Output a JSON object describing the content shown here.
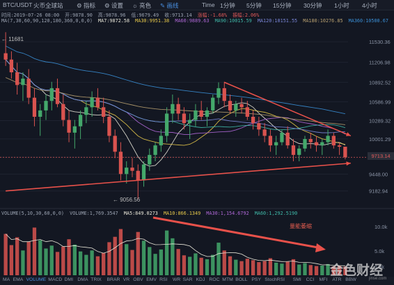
{
  "toolbar": {
    "pair": "BTC/USDT",
    "exchange": "火币全球站",
    "indicators": "指标",
    "settings": "设置",
    "theme": "亮色",
    "drawing": "画线",
    "timeframes": [
      "Time",
      "1分钟",
      "5分钟",
      "15分钟",
      "30分钟",
      "1小时",
      "4小时"
    ]
  },
  "info": {
    "line1": [
      "时间:2019-07-26 08:00",
      "开:9878.90",
      "高:9878.96",
      "低:9679.49",
      "收:9713.14",
      "涨幅:-1.68%",
      "振幅:2.06%"
    ],
    "line2": [
      "MA(7,30,60,90,120,180,360,0,0,0)",
      "MA7:9872.58",
      "MA30:9951.38",
      "MA60:9889.63",
      "MA90:10015.59",
      "MA120:10151.55",
      "MA180:10276.85",
      "MA360:10500.67"
    ],
    "volume": [
      "VOLUME(5,10,30,60,0,0)",
      "VOLUME:1,769.3547",
      "MA5:849.0273",
      "MA10:866.1349",
      "MA30:1,154.6792",
      "MA60:1,292.5190"
    ]
  },
  "annotations": {
    "high": "11681",
    "low": "9056.56",
    "volume_note": "量能萎缩",
    "current_price": "9713.14"
  },
  "watermark": {
    "text": "金色财经",
    "url": "jinse.com"
  },
  "indicator_bar": [
    "MA",
    "EMA",
    "VOLUME",
    "MACD",
    "DMI",
    "DMA",
    "TRIX",
    "BRAR",
    "VR",
    "OBV",
    "EMV",
    "RSI",
    "WR",
    "SAR",
    "KDJ",
    "ROC",
    "MTM",
    "BOLL",
    "PSY",
    "StochRSI",
    "SMI",
    "CCI",
    "MFI",
    "ATR",
    "BBW"
  ],
  "colors": {
    "up": "#44a86b",
    "down": "#d9534f",
    "trendline": "#e8514a",
    "ma7": "#e8e6d8",
    "ma30": "#e6c84a",
    "ma60": "#b068d8",
    "ma90": "#3fb8a8",
    "ma120": "#7a86d8",
    "ma180": "#b8a070",
    "ma360": "#3a8fd6"
  },
  "chart_data": {
    "type": "candlestick",
    "title": "BTC/USDT",
    "y_ticks": [
      11530.36,
      11206.98,
      10892.52,
      10586.99,
      10289.32,
      10001.29,
      9713.14,
      9448.0,
      9182.94
    ],
    "x_ticks": [
      "7月15",
      "7月17",
      "7月19",
      "7月21",
      "7月23",
      "7月25",
      "7月27"
    ],
    "volume_ticks": [
      "10.0k",
      "5.0k",
      "1.8k"
    ],
    "candles": [
      [
        11350,
        11681,
        11150,
        11250
      ],
      [
        11250,
        11380,
        10950,
        11050
      ],
      [
        11050,
        11200,
        10700,
        10850
      ],
      [
        10850,
        11050,
        10600,
        10950
      ],
      [
        10950,
        11100,
        10550,
        10650
      ],
      [
        10650,
        10800,
        10200,
        10350
      ],
      [
        10350,
        10550,
        10050,
        10450
      ],
      [
        10450,
        10700,
        10300,
        10600
      ],
      [
        10600,
        10900,
        10450,
        10800
      ],
      [
        10800,
        10950,
        10500,
        10550
      ],
      [
        10550,
        10700,
        10200,
        10300
      ],
      [
        10300,
        10450,
        9950,
        10100
      ],
      [
        10100,
        10300,
        9850,
        10200
      ],
      [
        10200,
        10450,
        10000,
        10380
      ],
      [
        10380,
        10600,
        10250,
        10500
      ],
      [
        10500,
        10750,
        10350,
        10650
      ],
      [
        10650,
        10800,
        10450,
        10500
      ],
      [
        10500,
        10650,
        10250,
        10350
      ],
      [
        10350,
        10450,
        9950,
        10050
      ],
      [
        10050,
        10150,
        9700,
        9800
      ],
      [
        9800,
        9950,
        9350,
        9450
      ],
      [
        9450,
        9650,
        9300,
        9550
      ],
      [
        9550,
        9700,
        9400,
        9500
      ],
      [
        9500,
        9600,
        9056.56,
        9350
      ],
      [
        9350,
        9650,
        9250,
        9600
      ],
      [
        9600,
        9850,
        9500,
        9750
      ],
      [
        9750,
        9950,
        9650,
        9900
      ],
      [
        9900,
        10150,
        9800,
        10050
      ],
      [
        10050,
        10500,
        9950,
        10400
      ],
      [
        10400,
        10700,
        10250,
        10550
      ],
      [
        10550,
        10650,
        10300,
        10400
      ],
      [
        10400,
        10500,
        10150,
        10250
      ],
      [
        10250,
        10400,
        10000,
        10300
      ],
      [
        10300,
        10550,
        10200,
        10450
      ],
      [
        10450,
        10600,
        10300,
        10350
      ],
      [
        10350,
        10500,
        10200,
        10450
      ],
      [
        10450,
        10700,
        10400,
        10650
      ],
      [
        10650,
        10892,
        10550,
        10800
      ],
      [
        10800,
        10900,
        10500,
        10600
      ],
      [
        10600,
        10700,
        10400,
        10450
      ],
      [
        10450,
        10600,
        10350,
        10550
      ],
      [
        10550,
        10650,
        10400,
        10500
      ],
      [
        10500,
        10600,
        10300,
        10350
      ],
      [
        10350,
        10450,
        10150,
        10250
      ],
      [
        10250,
        10350,
        10050,
        10150
      ],
      [
        10150,
        10250,
        9950,
        10050
      ],
      [
        10050,
        10150,
        9800,
        9900
      ],
      [
        9900,
        10050,
        9750,
        9950
      ],
      [
        9950,
        10150,
        9900,
        10100
      ],
      [
        10100,
        10200,
        9850,
        9900
      ],
      [
        9900,
        10000,
        9650,
        9750
      ],
      [
        9750,
        9900,
        9650,
        9850
      ],
      [
        9850,
        10050,
        9800,
        10000
      ],
      [
        10000,
        10100,
        9850,
        9950
      ],
      [
        9950,
        10050,
        9800,
        9900
      ],
      [
        9900,
        10000,
        9750,
        9950
      ],
      [
        9950,
        10150,
        9900,
        10050
      ],
      [
        10050,
        10100,
        9850,
        9900
      ],
      [
        9900,
        9950,
        9750,
        9878.9
      ],
      [
        9878.9,
        9878.96,
        9679.49,
        9713.14
      ]
    ],
    "volumes": [
      8.5,
      6.2,
      7.8,
      5.1,
      6.9,
      9.8,
      7.2,
      5.5,
      6.1,
      4.8,
      5.9,
      7.4,
      6.3,
      4.9,
      4.2,
      5.1,
      3.9,
      4.6,
      6.8,
      7.9,
      9.5,
      6.4,
      5.2,
      8.9,
      7.1,
      5.8,
      4.4,
      5.3,
      9.2,
      7.6,
      5.4,
      4.1,
      3.8,
      4.5,
      3.6,
      3.3,
      4.2,
      6.7,
      5.1,
      3.9,
      3.2,
      2.9,
      3.4,
      3.1,
      2.7,
      2.9,
      3.5,
      2.6,
      2.4,
      2.8,
      3.3,
      2.2,
      2.5,
      2.1,
      1.9,
      2.0,
      2.3,
      1.8,
      1.9,
      1.77
    ],
    "trendline_upper": [
      [
        38,
        10892.52
      ],
      [
        59,
        10050
      ]
    ],
    "trendline_lower": [
      [
        0,
        9182.94
      ],
      [
        59,
        9620
      ]
    ]
  }
}
